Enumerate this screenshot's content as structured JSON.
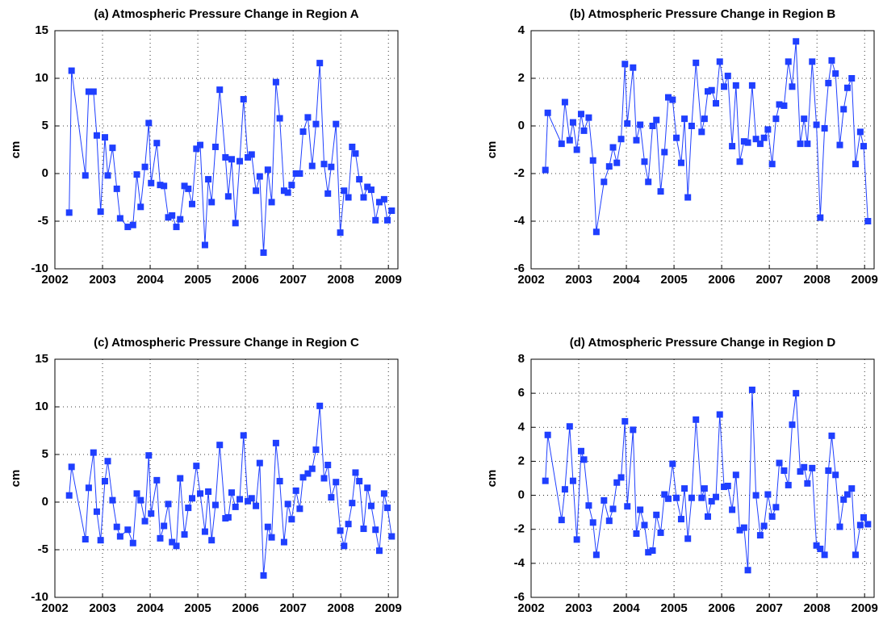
{
  "chart_data": [
    {
      "type": "line",
      "title": "(a) Atmospheric Pressure Change in Region A",
      "ylabel": "cm",
      "color": "#1f3fff",
      "grid": true,
      "xlim": [
        2002,
        2009.2
      ],
      "xticks": [
        2002,
        2003,
        2004,
        2005,
        2006,
        2007,
        2008,
        2009
      ],
      "ylim": [
        -10,
        15
      ],
      "yticks": [
        -10,
        -5,
        0,
        5,
        10,
        15
      ],
      "x": [
        2002.3,
        2002.35,
        2002.64,
        2002.71,
        2002.81,
        2002.88,
        2002.96,
        2003.05,
        2003.11,
        2003.21,
        2003.3,
        2003.37,
        2003.53,
        2003.64,
        2003.72,
        2003.8,
        2003.89,
        2003.97,
        2004.02,
        2004.14,
        2004.21,
        2004.29,
        2004.38,
        2004.46,
        2004.55,
        2004.63,
        2004.72,
        2004.8,
        2004.88,
        2004.97,
        2005.05,
        2005.15,
        2005.22,
        2005.29,
        2005.37,
        2005.46,
        2005.58,
        2005.64,
        2005.71,
        2005.79,
        2005.88,
        2005.96,
        2006.05,
        2006.13,
        2006.22,
        2006.3,
        2006.38,
        2006.47,
        2006.55,
        2006.64,
        2006.72,
        2006.81,
        2006.89,
        2006.97,
        2007.06,
        2007.14,
        2007.21,
        2007.31,
        2007.4,
        2007.48,
        2007.56,
        2007.65,
        2007.73,
        2007.8,
        2007.9,
        2007.99,
        2008.07,
        2008.16,
        2008.24,
        2008.31,
        2008.39,
        2008.48,
        2008.56,
        2008.64,
        2008.73,
        2008.81,
        2008.91,
        2008.98,
        2009.07
      ],
      "values": [
        -4.1,
        10.8,
        -0.2,
        8.6,
        8.6,
        4.0,
        -4.0,
        3.8,
        -0.2,
        2.7,
        -1.6,
        -4.7,
        -5.6,
        -5.4,
        -0.1,
        -3.5,
        0.7,
        5.3,
        -1.0,
        3.2,
        -1.2,
        -1.3,
        -4.6,
        -4.4,
        -5.6,
        -4.8,
        -1.3,
        -1.6,
        -3.2,
        2.6,
        3.0,
        -7.5,
        -0.6,
        -3.0,
        2.8,
        8.8,
        1.7,
        -2.4,
        1.5,
        -5.2,
        1.3,
        7.8,
        1.7,
        2.0,
        -1.8,
        -0.3,
        -8.3,
        0.4,
        -3.0,
        9.6,
        5.8,
        -1.8,
        -2.0,
        -1.2,
        0.0,
        0.0,
        4.4,
        5.9,
        0.8,
        5.2,
        11.6,
        1.0,
        -2.1,
        0.7,
        5.2,
        -6.2,
        -1.8,
        -2.5,
        2.8,
        2.1,
        -0.6,
        -2.5,
        -1.4,
        -1.7,
        -4.9,
        -3.0,
        -2.7,
        -4.9,
        -3.9
      ]
    },
    {
      "type": "line",
      "title": "(b) Atmospheric Pressure Change in Region B",
      "ylabel": "cm",
      "color": "#1f3fff",
      "grid": true,
      "xlim": [
        2002,
        2009.2
      ],
      "xticks": [
        2002,
        2003,
        2004,
        2005,
        2006,
        2007,
        2008,
        2009
      ],
      "ylim": [
        -6,
        4
      ],
      "yticks": [
        -6,
        -4,
        -2,
        0,
        2,
        4
      ],
      "x": [
        2002.3,
        2002.35,
        2002.64,
        2002.71,
        2002.81,
        2002.88,
        2002.96,
        2003.05,
        2003.11,
        2003.21,
        2003.3,
        2003.37,
        2003.53,
        2003.64,
        2003.72,
        2003.8,
        2003.89,
        2003.97,
        2004.02,
        2004.14,
        2004.21,
        2004.29,
        2004.38,
        2004.46,
        2004.55,
        2004.63,
        2004.72,
        2004.8,
        2004.88,
        2004.97,
        2005.05,
        2005.15,
        2005.22,
        2005.29,
        2005.37,
        2005.46,
        2005.58,
        2005.64,
        2005.71,
        2005.79,
        2005.88,
        2005.96,
        2006.05,
        2006.13,
        2006.22,
        2006.3,
        2006.38,
        2006.47,
        2006.55,
        2006.64,
        2006.72,
        2006.81,
        2006.89,
        2006.97,
        2007.06,
        2007.14,
        2007.21,
        2007.31,
        2007.4,
        2007.48,
        2007.56,
        2007.65,
        2007.73,
        2007.8,
        2007.9,
        2007.99,
        2008.07,
        2008.16,
        2008.24,
        2008.31,
        2008.39,
        2008.48,
        2008.56,
        2008.64,
        2008.73,
        2008.81,
        2008.91,
        2008.98,
        2009.07
      ],
      "values": [
        -1.85,
        0.55,
        -0.75,
        1.0,
        -0.6,
        0.15,
        -1.0,
        0.5,
        -0.2,
        0.35,
        -1.45,
        -4.45,
        -2.35,
        -1.7,
        -0.9,
        -1.55,
        -0.55,
        2.6,
        0.1,
        2.45,
        -0.6,
        0.05,
        -1.5,
        -2.35,
        0.0,
        0.25,
        -2.75,
        -1.1,
        1.2,
        1.1,
        -0.5,
        -1.55,
        0.3,
        -3.0,
        0.0,
        2.65,
        -0.25,
        0.3,
        1.45,
        1.5,
        0.95,
        2.7,
        1.65,
        2.1,
        -0.85,
        1.7,
        -1.5,
        -0.65,
        -0.7,
        1.7,
        -0.55,
        -0.75,
        -0.5,
        -0.15,
        -1.6,
        0.3,
        0.9,
        0.85,
        2.7,
        1.65,
        3.55,
        -0.75,
        0.3,
        -0.75,
        2.7,
        0.05,
        -3.85,
        -0.1,
        1.8,
        2.75,
        2.2,
        -0.8,
        0.7,
        1.6,
        2.0,
        -1.6,
        -0.25,
        -0.85,
        -4.0
      ]
    },
    {
      "type": "line",
      "title": "(c) Atmospheric Pressure Change in Region C",
      "ylabel": "cm",
      "color": "#1f3fff",
      "grid": true,
      "xlim": [
        2002,
        2009.2
      ],
      "xticks": [
        2002,
        2003,
        2004,
        2005,
        2006,
        2007,
        2008,
        2009
      ],
      "ylim": [
        -10,
        15
      ],
      "yticks": [
        -10,
        -5,
        0,
        5,
        10,
        15
      ],
      "x": [
        2002.3,
        2002.35,
        2002.64,
        2002.71,
        2002.81,
        2002.88,
        2002.96,
        2003.05,
        2003.11,
        2003.21,
        2003.3,
        2003.37,
        2003.53,
        2003.64,
        2003.72,
        2003.8,
        2003.89,
        2003.97,
        2004.02,
        2004.14,
        2004.21,
        2004.29,
        2004.38,
        2004.46,
        2004.55,
        2004.63,
        2004.72,
        2004.8,
        2004.88,
        2004.97,
        2005.05,
        2005.15,
        2005.22,
        2005.29,
        2005.37,
        2005.46,
        2005.58,
        2005.64,
        2005.71,
        2005.79,
        2005.88,
        2005.96,
        2006.05,
        2006.13,
        2006.22,
        2006.3,
        2006.38,
        2006.47,
        2006.55,
        2006.64,
        2006.72,
        2006.81,
        2006.89,
        2006.97,
        2007.06,
        2007.14,
        2007.21,
        2007.31,
        2007.4,
        2007.48,
        2007.56,
        2007.65,
        2007.73,
        2007.8,
        2007.9,
        2007.99,
        2008.07,
        2008.16,
        2008.24,
        2008.31,
        2008.39,
        2008.48,
        2008.56,
        2008.64,
        2008.73,
        2008.81,
        2008.91,
        2008.98,
        2009.07
      ],
      "values": [
        0.7,
        3.7,
        -3.9,
        1.5,
        5.2,
        -1.0,
        -4.0,
        2.2,
        4.3,
        0.2,
        -2.6,
        -3.6,
        -2.9,
        -4.3,
        0.9,
        0.2,
        -2.0,
        4.9,
        -1.2,
        2.3,
        -3.8,
        -2.5,
        -0.2,
        -4.2,
        -4.6,
        2.5,
        -3.4,
        -0.6,
        0.4,
        3.8,
        0.9,
        -3.1,
        1.1,
        -4.0,
        -0.3,
        6.0,
        -1.7,
        -1.6,
        1.0,
        -0.5,
        0.3,
        7.0,
        0.1,
        0.4,
        -0.4,
        4.1,
        -7.7,
        -2.6,
        -3.7,
        6.2,
        2.2,
        -4.2,
        -0.2,
        -1.8,
        1.2,
        -0.7,
        2.6,
        3.0,
        3.5,
        5.5,
        10.1,
        2.5,
        3.9,
        0.5,
        2.1,
        -3.0,
        -4.6,
        -2.3,
        -0.1,
        3.1,
        2.2,
        -2.8,
        1.5,
        -0.4,
        -2.9,
        -5.1,
        0.9,
        -0.6,
        -3.6
      ]
    },
    {
      "type": "line",
      "title": "(d) Atmospheric Pressure Change in Region D",
      "ylabel": "cm",
      "color": "#1f3fff",
      "grid": true,
      "xlim": [
        2002,
        2009.2
      ],
      "xticks": [
        2002,
        2003,
        2004,
        2005,
        2006,
        2007,
        2008,
        2009
      ],
      "ylim": [
        -6,
        8
      ],
      "yticks": [
        -6,
        -4,
        -2,
        0,
        2,
        4,
        6,
        8
      ],
      "x": [
        2002.3,
        2002.35,
        2002.64,
        2002.71,
        2002.81,
        2002.88,
        2002.96,
        2003.05,
        2003.11,
        2003.21,
        2003.3,
        2003.37,
        2003.53,
        2003.64,
        2003.72,
        2003.8,
        2003.89,
        2003.97,
        2004.02,
        2004.14,
        2004.21,
        2004.29,
        2004.38,
        2004.46,
        2004.55,
        2004.63,
        2004.72,
        2004.8,
        2004.88,
        2004.97,
        2005.05,
        2005.15,
        2005.22,
        2005.29,
        2005.37,
        2005.46,
        2005.58,
        2005.64,
        2005.71,
        2005.79,
        2005.88,
        2005.96,
        2006.05,
        2006.13,
        2006.22,
        2006.3,
        2006.38,
        2006.47,
        2006.55,
        2006.64,
        2006.72,
        2006.81,
        2006.89,
        2006.97,
        2007.06,
        2007.14,
        2007.21,
        2007.31,
        2007.4,
        2007.48,
        2007.56,
        2007.65,
        2007.73,
        2007.8,
        2007.9,
        2007.99,
        2008.07,
        2008.16,
        2008.24,
        2008.31,
        2008.39,
        2008.48,
        2008.56,
        2008.64,
        2008.73,
        2008.81,
        2008.91,
        2008.98,
        2009.07
      ],
      "values": [
        0.85,
        3.55,
        -1.45,
        0.35,
        4.05,
        0.85,
        -2.6,
        2.6,
        2.1,
        -0.6,
        -1.6,
        -3.5,
        -0.3,
        -1.5,
        -0.8,
        0.75,
        1.05,
        4.35,
        -0.65,
        3.85,
        -2.25,
        -0.85,
        -1.75,
        -3.35,
        -3.25,
        -1.15,
        -2.2,
        0.05,
        -0.2,
        1.85,
        -0.15,
        -1.4,
        0.4,
        -2.55,
        -0.15,
        4.45,
        -0.15,
        0.4,
        -1.25,
        -0.35,
        -0.1,
        4.75,
        0.5,
        0.55,
        -0.85,
        1.2,
        -2.05,
        -1.9,
        -4.4,
        6.2,
        0.0,
        -2.35,
        -1.8,
        0.05,
        -1.25,
        -0.7,
        1.9,
        1.45,
        0.6,
        4.15,
        6.0,
        1.4,
        1.65,
        0.7,
        1.6,
        -2.95,
        -3.15,
        -3.5,
        1.45,
        3.5,
        1.2,
        -1.85,
        -0.25,
        0.05,
        0.4,
        -3.5,
        -1.75,
        -1.3,
        -1.7
      ]
    }
  ]
}
